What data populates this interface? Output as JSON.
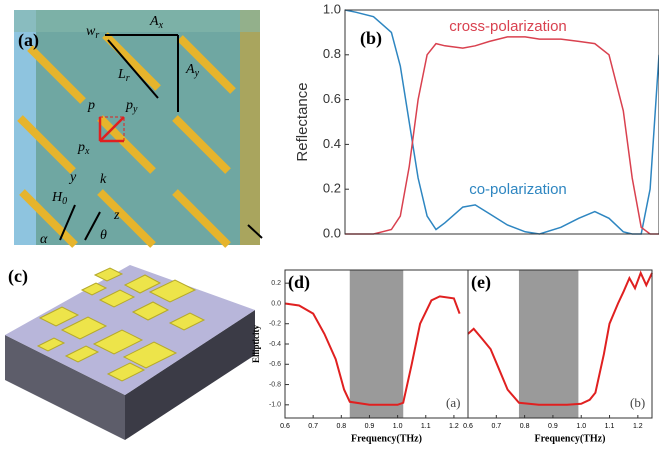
{
  "diagrams": {
    "a": {
      "panel": "(a)",
      "labels": [
        {
          "text": "w",
          "sub": "r"
        },
        {
          "text": "A",
          "sub": "x"
        },
        {
          "text": "L",
          "sub": "r"
        },
        {
          "text": "A",
          "sub": "y"
        },
        {
          "text": "p",
          "sub": ""
        },
        {
          "text": "p",
          "sub": "y"
        },
        {
          "text": "p",
          "sub": "x"
        },
        {
          "text": "H",
          "sub": "0"
        },
        {
          "text": "y",
          "sub": ""
        },
        {
          "text": "k",
          "sub": ""
        },
        {
          "text": "z",
          "sub": ""
        },
        {
          "text": "α",
          "sub": ""
        },
        {
          "text": "θ",
          "sub": ""
        }
      ]
    },
    "c": {
      "panel": "(c)"
    }
  },
  "chart_data": [
    {
      "type": "line",
      "panel": "(b)",
      "ylabel": "Reflectance",
      "x": [
        0.24,
        0.3,
        0.4,
        0.5,
        0.55,
        0.6,
        0.65,
        0.7,
        0.75,
        0.8,
        0.9,
        0.97,
        1.05,
        1.15,
        1.25,
        1.33,
        1.45,
        1.55,
        1.64,
        1.72,
        1.8,
        1.85,
        1.9,
        1.95,
        2.0
      ],
      "series": [
        {
          "name": "co-polarization",
          "color": "#2e86c1",
          "values": [
            1.0,
            0.99,
            0.97,
            0.9,
            0.75,
            0.5,
            0.25,
            0.08,
            0.02,
            0.05,
            0.12,
            0.13,
            0.09,
            0.04,
            0.01,
            0.0,
            0.03,
            0.07,
            0.1,
            0.07,
            0.01,
            0.0,
            0.0,
            0.2,
            0.8
          ]
        },
        {
          "name": "cross-polarization",
          "color": "#d9414f",
          "values": [
            0.0,
            0.0,
            0.0,
            0.02,
            0.08,
            0.3,
            0.6,
            0.8,
            0.85,
            0.84,
            0.83,
            0.84,
            0.86,
            0.88,
            0.88,
            0.87,
            0.87,
            0.86,
            0.85,
            0.8,
            0.55,
            0.25,
            0.03,
            0.0,
            0.0
          ]
        }
      ],
      "xlim": [
        0.24,
        2.0
      ],
      "ylim": [
        0,
        1.0
      ],
      "yticks": [
        {
          "value": 0,
          "label": "0.0"
        },
        0.2,
        0.4,
        0.6,
        0.8,
        {
          "value": 1,
          "label": "1.0"
        }
      ]
    },
    {
      "type": "line",
      "panel": "(d)",
      "inner_label": "(a)",
      "xlabel": "Frequency(THz)",
      "ylabel": "Ellipticity",
      "x": [
        0.6,
        0.65,
        0.7,
        0.74,
        0.78,
        0.81,
        0.83,
        0.9,
        0.95,
        1.0,
        1.02,
        1.05,
        1.08,
        1.12,
        1.15,
        1.2,
        1.22
      ],
      "series": [
        {
          "name": "",
          "color": "#e02020",
          "values": [
            0.0,
            -0.02,
            -0.1,
            -0.3,
            -0.55,
            -0.85,
            -0.97,
            -1.0,
            -1.0,
            -1.0,
            -0.98,
            -0.6,
            -0.2,
            0.03,
            0.07,
            0.05,
            -0.1
          ]
        }
      ],
      "shaded": [
        0.83,
        1.02
      ],
      "xlim": [
        0.6,
        1.25
      ],
      "ylim": [
        -1.13,
        0.33
      ],
      "xticks": [
        0.6,
        0.7,
        0.8,
        0.9,
        {
          "value": 1,
          "label": "1.0"
        },
        1.1,
        1.2
      ],
      "yticks": [
        0.2,
        {
          "value": 0,
          "label": "0.0"
        },
        -0.2,
        -0.4,
        -0.6,
        -0.8,
        {
          "value": -1,
          "label": "-1.0"
        }
      ]
    },
    {
      "type": "line",
      "panel": "(e)",
      "inner_label": "(b)",
      "xlabel": "Frequency(THz)",
      "x": [
        0.6,
        0.62,
        0.65,
        0.68,
        0.71,
        0.74,
        0.78,
        0.85,
        0.95,
        1.0,
        1.03,
        1.05,
        1.08,
        1.1,
        1.13,
        1.15,
        1.17,
        1.19,
        1.21,
        1.23,
        1.25
      ],
      "series": [
        {
          "name": "",
          "color": "#e02020",
          "values": [
            -0.3,
            -0.25,
            -0.35,
            -0.45,
            -0.65,
            -0.85,
            -0.98,
            -1.0,
            -1.0,
            -0.99,
            -0.95,
            -0.88,
            -0.5,
            -0.2,
            0.0,
            0.12,
            0.25,
            0.15,
            0.3,
            0.18,
            0.3
          ]
        }
      ],
      "shaded": [
        0.78,
        0.99
      ],
      "xlim": [
        0.6,
        1.25
      ],
      "ylim": [
        -1.13,
        0.33
      ],
      "xticks": [
        0.6,
        0.7,
        0.8,
        0.9,
        {
          "value": 1,
          "label": "1.0"
        },
        1.1,
        1.2
      ]
    }
  ]
}
